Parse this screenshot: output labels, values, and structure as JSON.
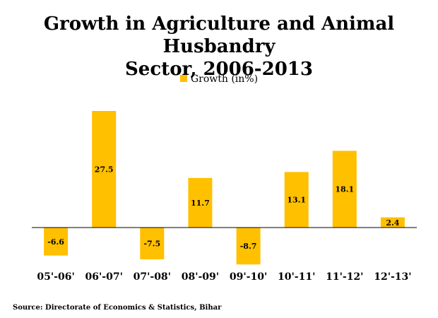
{
  "title": "Growth in  Agriculture and Animal Husbandry\nSector, 2006-2013",
  "legend_label": "Growth (in%)",
  "source": "Source: Directorate of Economics & Statistics, Bihar",
  "colors": {
    "bar": "#FFC000",
    "axis": "#000000"
  },
  "chart_data": {
    "type": "bar",
    "title": "Growth in  Agriculture and Animal Husbandry Sector, 2006-2013",
    "categories": [
      "05'-06'",
      "06'-07'",
      "07'-08'",
      "08'-09'",
      "09'-10'",
      "10'-11'",
      "11'-12'",
      "12'-13'"
    ],
    "series": [
      {
        "name": "Growth (in%)",
        "values": [
          -6.6,
          27.5,
          -7.5,
          11.7,
          -8.7,
          13.1,
          18.1,
          2.4
        ]
      }
    ],
    "data_labels": [
      "-6.6",
      "27.5",
      "-7.5",
      "11.7",
      "-8.7",
      "13.1",
      "18.1",
      "2.4"
    ],
    "xlabel": "",
    "ylabel": "",
    "ylim": [
      -10,
      30
    ],
    "grid": false,
    "legend_position": "top"
  }
}
